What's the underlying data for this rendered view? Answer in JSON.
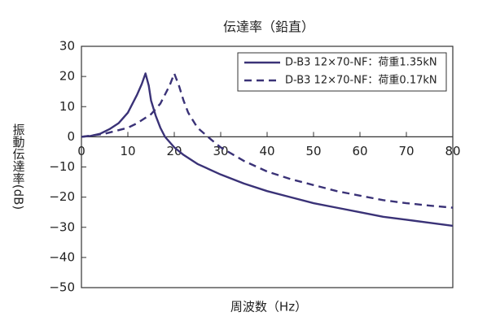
{
  "chart_data": {
    "type": "line",
    "title": "伝達率（鉛直）",
    "x_label": "周波数（Hz）",
    "y_label": "振動伝達率(dB)",
    "xlim": [
      0,
      80
    ],
    "xticks": [
      0,
      10,
      20,
      30,
      40,
      50,
      60,
      70,
      80
    ],
    "ylim": [
      -50,
      30
    ],
    "yticks": [
      {
        "value": -50,
        "label": "−50"
      },
      {
        "value": -40,
        "label": "−40"
      },
      {
        "value": -30,
        "label": "−30"
      },
      {
        "value": -20,
        "label": "−20"
      },
      {
        "value": -10,
        "label": "−10"
      },
      0,
      10,
      20,
      30
    ],
    "legend": "upper right",
    "series": [
      {
        "name": "D-B3 12×70-NF：荷重1.35kN",
        "color": "#3a3277",
        "dash": false,
        "x": [
          0,
          2,
          4,
          6,
          8,
          10,
          12,
          13,
          13.8,
          14.5,
          15,
          16,
          17,
          18,
          20,
          22,
          25,
          30,
          35,
          40,
          45,
          50,
          55,
          60,
          65,
          70,
          75,
          80
        ],
        "values": [
          0,
          0.3,
          1,
          2.5,
          4.5,
          8,
          14,
          17.5,
          21,
          17,
          12,
          7,
          3,
          0,
          -3.5,
          -6,
          -9,
          -12.5,
          -15.5,
          -18,
          -20,
          -22,
          -23.5,
          -25,
          -26.5,
          -27.5,
          -28.5,
          -29.5
        ]
      },
      {
        "name": "D-B3 12×70-NF：荷重0.17kN",
        "color": "#3a3277",
        "dash": true,
        "x": [
          0,
          5,
          10,
          12,
          15,
          17,
          19,
          20,
          21,
          22,
          23,
          25,
          28,
          30,
          35,
          40,
          45,
          50,
          55,
          60,
          65,
          70,
          75,
          80
        ],
        "values": [
          0,
          1,
          3,
          4.5,
          7.5,
          11,
          17,
          21,
          17,
          12,
          8,
          3,
          -1,
          -3.5,
          -8,
          -11.5,
          -14,
          -16,
          -18,
          -19.5,
          -21,
          -22,
          -22.8,
          -23.5
        ]
      }
    ]
  }
}
